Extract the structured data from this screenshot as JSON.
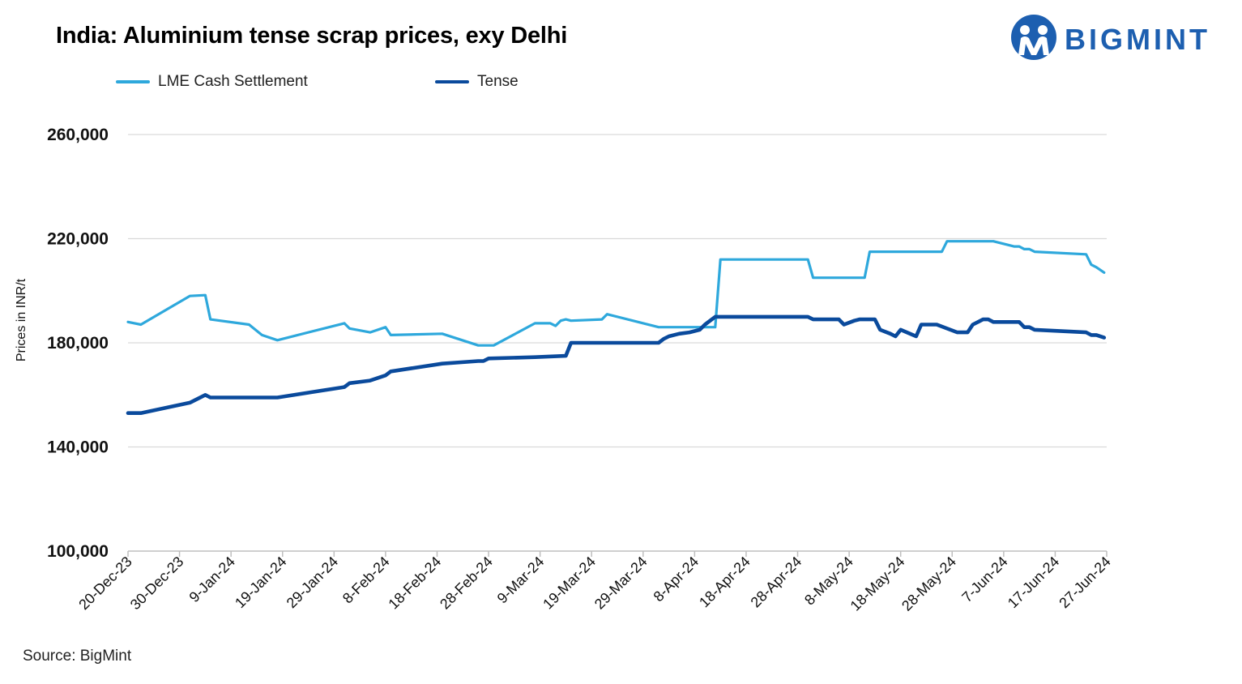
{
  "title": "India: Aluminium tense scrap prices, exy Delhi",
  "logo": {
    "text": "BIGMINT",
    "icon": "bigmint-logo-icon",
    "color": "#1d5fb0"
  },
  "source": "Source: BigMint",
  "colors": {
    "lme": "#2ea8dc",
    "tense": "#0a4a9c",
    "grid": "#d9d9d9",
    "axis": "#bfbfbf"
  },
  "chart_data": {
    "type": "line",
    "title": "India: Aluminium tense scrap prices, exy Delhi",
    "xlabel": "",
    "ylabel": "Prices in INR/t",
    "ylim": [
      100000,
      260000
    ],
    "yticks": [
      100000,
      140000,
      180000,
      220000,
      260000
    ],
    "ytick_labels": [
      "100,000",
      "140,000",
      "180,000",
      "220,000",
      "260,000"
    ],
    "xlim_days": [
      0,
      190
    ],
    "xtick_days": [
      0,
      10,
      20,
      30,
      40,
      50,
      60,
      70,
      80,
      90,
      100,
      110,
      120,
      130,
      140,
      150,
      160,
      170,
      180,
      190
    ],
    "xtick_labels": [
      "20-Dec-23",
      "30-Dec-23",
      "9-Jan-24",
      "19-Jan-24",
      "29-Jan-24",
      "8-Feb-24",
      "18-Feb-24",
      "28-Feb-24",
      "9-Mar-24",
      "19-Mar-24",
      "29-Mar-24",
      "8-Apr-24",
      "18-Apr-24",
      "28-Apr-24",
      "8-May-24",
      "18-May-24",
      "28-May-24",
      "7-Jun-24",
      "17-Jun-24",
      "27-Jun-24"
    ],
    "legend_position": "top-left",
    "grid": true,
    "series": [
      {
        "name": "LME Cash Settlement",
        "color": "#2ea8dc",
        "points": [
          [
            0,
            188000
          ],
          [
            2.5,
            187000
          ],
          [
            12,
            198000
          ],
          [
            15,
            198300
          ],
          [
            16,
            189000
          ],
          [
            23.5,
            187000
          ],
          [
            26,
            183000
          ],
          [
            29,
            181000
          ],
          [
            42,
            187500
          ],
          [
            43,
            185500
          ],
          [
            47,
            184000
          ],
          [
            50,
            186000
          ],
          [
            51,
            183000
          ],
          [
            61,
            183500
          ],
          [
            68,
            179000
          ],
          [
            71,
            179000
          ],
          [
            79,
            187500
          ],
          [
            82,
            187500
          ],
          [
            83,
            186500
          ],
          [
            84,
            188500
          ],
          [
            85,
            189000
          ],
          [
            86,
            188500
          ],
          [
            92,
            189000
          ],
          [
            93,
            191000
          ],
          [
            103,
            186000
          ],
          [
            113,
            186000
          ],
          [
            114,
            186000
          ],
          [
            115,
            212000
          ],
          [
            132,
            212000
          ],
          [
            133,
            205000
          ],
          [
            143,
            205000
          ],
          [
            144,
            215000
          ],
          [
            158,
            215000
          ],
          [
            159,
            219000
          ],
          [
            168,
            219000
          ],
          [
            172,
            217000
          ],
          [
            173,
            217000
          ],
          [
            174,
            216000
          ],
          [
            175,
            216000
          ],
          [
            176,
            215000
          ],
          [
            186,
            214000
          ],
          [
            187,
            210000
          ],
          [
            188,
            209000
          ],
          [
            189.5,
            207000
          ]
        ]
      },
      {
        "name": "Tense",
        "color": "#0a4a9c",
        "points": [
          [
            0,
            153000
          ],
          [
            2.5,
            153000
          ],
          [
            12,
            157000
          ],
          [
            15,
            160000
          ],
          [
            16,
            159000
          ],
          [
            29,
            159000
          ],
          [
            42,
            163000
          ],
          [
            43,
            164500
          ],
          [
            47,
            165500
          ],
          [
            50,
            167500
          ],
          [
            51,
            169000
          ],
          [
            61,
            172000
          ],
          [
            68,
            173000
          ],
          [
            69,
            173000
          ],
          [
            70,
            174000
          ],
          [
            79,
            174500
          ],
          [
            85,
            175000
          ],
          [
            86,
            180000
          ],
          [
            103,
            180000
          ],
          [
            104,
            181500
          ],
          [
            105,
            182500
          ],
          [
            107,
            183500
          ],
          [
            109,
            184000
          ],
          [
            111,
            185000
          ],
          [
            112,
            187000
          ],
          [
            114,
            190000
          ],
          [
            132,
            190000
          ],
          [
            133,
            189000
          ],
          [
            138,
            189000
          ],
          [
            139,
            187000
          ],
          [
            141,
            188500
          ],
          [
            142,
            189000
          ],
          [
            145,
            189000
          ],
          [
            146,
            185000
          ],
          [
            148,
            183500
          ],
          [
            149,
            182500
          ],
          [
            150,
            185000
          ],
          [
            153,
            182500
          ],
          [
            154,
            187000
          ],
          [
            157,
            187000
          ],
          [
            161,
            184000
          ],
          [
            163,
            184000
          ],
          [
            164,
            187000
          ],
          [
            165,
            188000
          ],
          [
            166,
            189000
          ],
          [
            167,
            189000
          ],
          [
            168,
            188000
          ],
          [
            172,
            188000
          ],
          [
            173,
            188000
          ],
          [
            174,
            186000
          ],
          [
            175,
            186000
          ],
          [
            176,
            185000
          ],
          [
            186,
            184000
          ],
          [
            187,
            183000
          ],
          [
            188,
            183000
          ],
          [
            189.5,
            182000
          ]
        ]
      }
    ]
  }
}
